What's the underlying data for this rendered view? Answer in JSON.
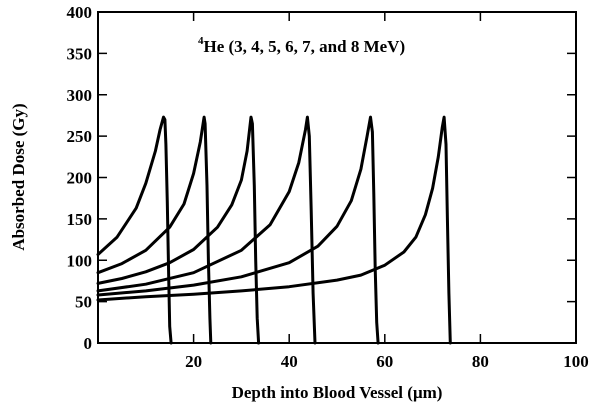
{
  "chart_data": {
    "type": "line",
    "title": "",
    "annotation": {
      "superscript": "4",
      "text": "He (3, 4, 5, 6, 7, and 8 MeV)"
    },
    "xlabel": "Depth into Blood Vessel (μm)",
    "ylabel": "Absorbed Dose (Gy)",
    "xlim": [
      0,
      100
    ],
    "ylim": [
      0,
      400
    ],
    "xticks": [
      20,
      40,
      60,
      80,
      100
    ],
    "yticks": [
      0,
      50,
      100,
      150,
      200,
      250,
      300,
      350,
      400
    ],
    "grid": false,
    "legend": "none",
    "color": "#000000",
    "series": [
      {
        "x": [
          0,
          4,
          8,
          10,
          12,
          13,
          13.7,
          14,
          14.2,
          14.5,
          14.8,
          15.0,
          15.3
        ],
        "y": [
          107,
          128,
          163,
          193,
          232,
          258,
          273,
          270,
          240,
          170,
          80,
          20,
          0
        ]
      },
      {
        "x": [
          0,
          5,
          10,
          15,
          18,
          20,
          21.4,
          22.2,
          22.4,
          22.8,
          23.1,
          23.4,
          23.6
        ],
        "y": [
          85,
          96,
          112,
          140,
          168,
          205,
          243,
          273,
          265,
          190,
          100,
          30,
          0
        ]
      },
      {
        "x": [
          0,
          5,
          10,
          15,
          20,
          25,
          28,
          30,
          31.2,
          32.0,
          32.3,
          32.7,
          33.0,
          33.3,
          33.6
        ],
        "y": [
          72,
          78,
          86,
          97,
          113,
          140,
          167,
          197,
          232,
          273,
          265,
          190,
          100,
          30,
          0
        ]
      },
      {
        "x": [
          0,
          10,
          20,
          30,
          36,
          40,
          42,
          43.4,
          43.8,
          44.2,
          44.6,
          45.0,
          45.4
        ],
        "y": [
          63,
          71,
          85,
          112,
          143,
          183,
          218,
          258,
          273,
          250,
          160,
          60,
          0
        ]
      },
      {
        "x": [
          0,
          10,
          20,
          30,
          40,
          46,
          50,
          53,
          55,
          56.3,
          57.0,
          57.4,
          57.7,
          58.0,
          58.3,
          58.6
        ],
        "y": [
          58,
          63,
          70,
          80,
          97,
          117,
          141,
          172,
          210,
          250,
          273,
          255,
          180,
          90,
          25,
          0
        ]
      },
      {
        "x": [
          0,
          10,
          20,
          30,
          40,
          50,
          55,
          60,
          64,
          66.5,
          68.5,
          70,
          71.2,
          72,
          72.4,
          72.8,
          73.1,
          73.4,
          73.7
        ],
        "y": [
          52,
          56,
          59,
          63,
          68,
          76,
          82,
          94,
          110,
          128,
          155,
          187,
          225,
          260,
          273,
          240,
          150,
          60,
          0
        ]
      }
    ]
  }
}
